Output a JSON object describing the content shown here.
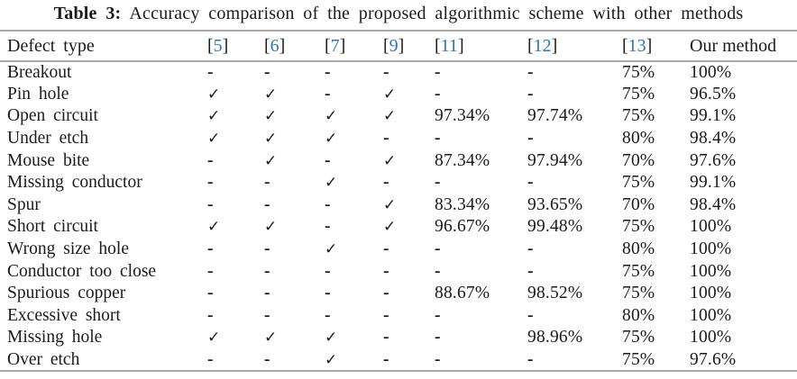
{
  "caption": {
    "label": "Table 3:",
    "text": "Accuracy comparison of the proposed algorithmic scheme with other methods"
  },
  "citation_open": "[",
  "citation_close": "]",
  "colors": {
    "citation_link": "#2e75b8",
    "text": "#1b1b1b",
    "rule": "#aaaaaa"
  },
  "table": {
    "columns": [
      {
        "key": "defect-type",
        "label": "Defect type",
        "type": "text"
      },
      {
        "key": "ref-5",
        "label": "5",
        "type": "citation"
      },
      {
        "key": "ref-6",
        "label": "6",
        "type": "citation"
      },
      {
        "key": "ref-7",
        "label": "7",
        "type": "citation"
      },
      {
        "key": "ref-9",
        "label": "9",
        "type": "citation"
      },
      {
        "key": "ref-11",
        "label": "11",
        "type": "citation"
      },
      {
        "key": "ref-12",
        "label": "12",
        "type": "citation"
      },
      {
        "key": "ref-13",
        "label": "13",
        "type": "citation"
      },
      {
        "key": "our-method",
        "label": "Our method",
        "type": "text"
      }
    ],
    "rows": [
      {
        "defect": "Breakout",
        "values": [
          "-",
          "-",
          "-",
          "-",
          "-",
          "-",
          "75%",
          "100%"
        ]
      },
      {
        "defect": "Pin hole",
        "values": [
          "✓",
          "✓",
          "-",
          "✓",
          "-",
          "-",
          "75%",
          "96.5%"
        ]
      },
      {
        "defect": "Open circuit",
        "values": [
          "✓",
          "✓",
          "✓",
          "✓",
          "97.34%",
          "97.74%",
          "75%",
          "99.1%"
        ]
      },
      {
        "defect": "Under etch",
        "values": [
          "✓",
          "✓",
          "✓",
          "-",
          "-",
          "-",
          "80%",
          "98.4%"
        ]
      },
      {
        "defect": "Mouse bite",
        "values": [
          "-",
          "✓",
          "-",
          "✓",
          "87.34%",
          "97.94%",
          "70%",
          "97.6%"
        ]
      },
      {
        "defect": "Missing conductor",
        "values": [
          "-",
          "-",
          "✓",
          "-",
          "-",
          "-",
          "75%",
          "99.1%"
        ]
      },
      {
        "defect": "Spur",
        "values": [
          "-",
          "-",
          "-",
          "✓",
          "83.34%",
          "93.65%",
          "70%",
          "98.4%"
        ]
      },
      {
        "defect": "Short circuit",
        "values": [
          "✓",
          "✓",
          "-",
          "✓",
          "96.67%",
          "99.48%",
          "75%",
          "100%"
        ]
      },
      {
        "defect": "Wrong size hole",
        "values": [
          "-",
          "-",
          "✓",
          "-",
          "-",
          "-",
          "80%",
          "100%"
        ]
      },
      {
        "defect": "Conductor too close",
        "values": [
          "-",
          "-",
          "-",
          "-",
          "-",
          "-",
          "75%",
          "100%"
        ]
      },
      {
        "defect": "Spurious copper",
        "values": [
          "-",
          "-",
          "-",
          "-",
          "88.67%",
          "98.52%",
          "75%",
          "100%"
        ]
      },
      {
        "defect": "Excessive short",
        "values": [
          "-",
          "-",
          "-",
          "-",
          "-",
          "-",
          "80%",
          "100%"
        ]
      },
      {
        "defect": "Missing hole",
        "values": [
          "✓",
          "✓",
          "✓",
          "-",
          "-",
          "98.96%",
          "75%",
          "100%"
        ]
      },
      {
        "defect": "Over etch",
        "values": [
          "-",
          "-",
          "✓",
          "-",
          "-",
          "-",
          "75%",
          "97.6%"
        ]
      }
    ]
  }
}
